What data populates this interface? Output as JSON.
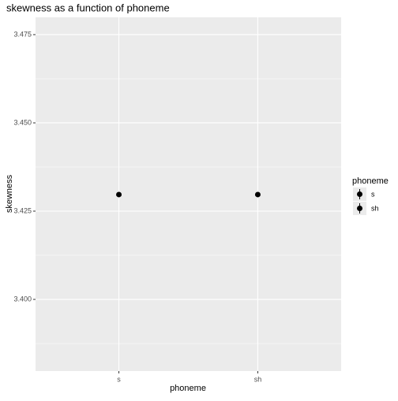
{
  "chart_data": {
    "type": "point",
    "title": "skewness as a function of phoneme",
    "x_label": "phoneme",
    "y_label": "skewness",
    "categories": [
      "s",
      "sh"
    ],
    "values": [
      3.4297,
      3.4297
    ],
    "color": "#000000",
    "ylim": [
      3.3797,
      3.4799
    ],
    "yticks": [
      {
        "value": 3.4,
        "label": "3.400"
      },
      3.425,
      {
        "value": 3.45,
        "label": "3.450"
      },
      3.475
    ],
    "y_minor_ticks": [
      3.3875,
      3.4125,
      3.4375,
      3.4625
    ],
    "grid": true,
    "legend_title": "phoneme",
    "legend_position": "right"
  }
}
